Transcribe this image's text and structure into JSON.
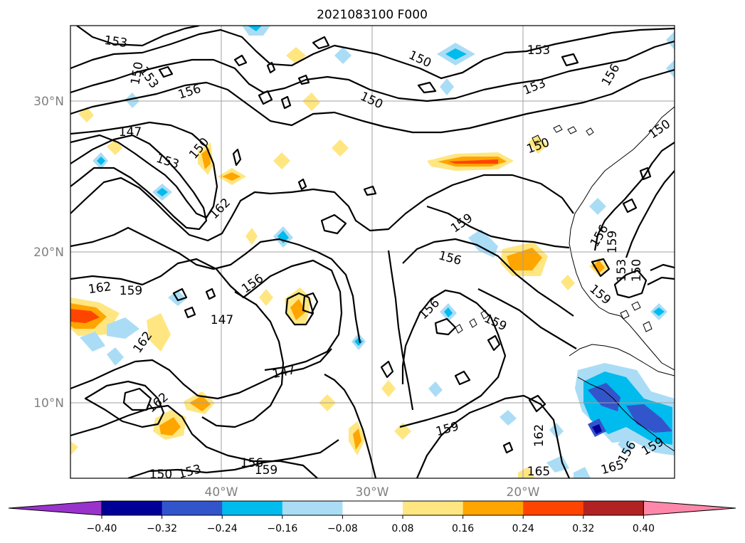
{
  "title": "2021083100 F000",
  "lat_labels": [
    "30°N",
    "20°N",
    "10°N"
  ],
  "lon_labels": [
    "40°W",
    "30°W",
    "20°W"
  ],
  "colorbar": {
    "colors": [
      "#9933cc",
      "#000099",
      "#3355cc",
      "#00bbee",
      "#aaddf5",
      "#ffffff",
      "#ffe680",
      "#ffa500",
      "#ff4400",
      "#b22222",
      "#ff88aa"
    ],
    "tick_labels": [
      "−0.40",
      "−0.32",
      "−0.24",
      "−0.16",
      "−0.08",
      "0.08",
      "0.16",
      "0.24",
      "0.32",
      "0.40"
    ]
  },
  "contour_labels": [
    "153",
    "150",
    "153",
    "156",
    "150",
    "147",
    "153",
    "150",
    "162",
    "150",
    "153",
    "156",
    "153",
    "159",
    "156",
    "156",
    "156",
    "159",
    "156",
    "159",
    "153",
    "150",
    "159",
    "150",
    "162",
    "159",
    "147",
    "147",
    "162",
    "162",
    "159",
    "162",
    "165",
    "165",
    "150",
    "153",
    "156",
    "159",
    "150",
    "156",
    "159"
  ]
}
